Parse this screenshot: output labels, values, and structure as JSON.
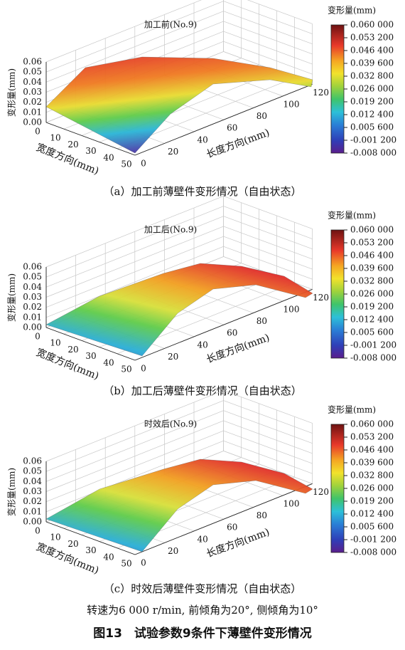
{
  "chart_data": [
    {
      "type": "surface",
      "title": "加工前(No.9)",
      "zlabel": "变形量(mm)",
      "xlabel": "宽度方向(mm)",
      "ylabel": "长度方向(mm)",
      "xlim": [
        0,
        50
      ],
      "xticks": [
        0,
        10,
        20,
        30,
        40,
        50
      ],
      "ylim": [
        0,
        120
      ],
      "yticks": [
        0,
        20,
        40,
        60,
        80,
        100,
        120
      ],
      "zlim": [
        0,
        0.06
      ],
      "zticks": [
        {
          "value": 0,
          "label": "0.00"
        },
        0.01,
        0.02,
        0.03,
        0.04,
        0.05,
        0.06
      ],
      "colorbar": {
        "title": "变形量(mm)",
        "lim": [
          -0.008,
          0.06
        ],
        "ticks": [
          {
            "value": 0.06,
            "label": "0.060 000"
          },
          {
            "value": 0.0532,
            "label": "0.053 200"
          },
          {
            "value": 0.0464,
            "label": "0.046 400"
          },
          {
            "value": 0.0396,
            "label": "0.039 600"
          },
          {
            "value": 0.0328,
            "label": "0.032 800"
          },
          {
            "value": 0.026,
            "label": "0.026 000"
          },
          {
            "value": 0.0192,
            "label": "0.019 200"
          },
          {
            "value": 0.0124,
            "label": "0.012 400"
          },
          {
            "value": 0.0056,
            "label": "0.005 600"
          },
          {
            "value": -0.0012,
            "label": "-0.001 200"
          },
          {
            "value": -0.008,
            "label": "-0.008 000"
          }
        ]
      },
      "caption": "（a）加工前薄壁件变形情况（自由状态）"
    },
    {
      "type": "surface",
      "title": "加工后(No.9)",
      "zlabel": "变形量(mm)",
      "xlabel": "宽度方向(mm)",
      "ylabel": "长度方向(mm)",
      "xlim": [
        0,
        50
      ],
      "xticks": [
        0,
        10,
        20,
        30,
        40,
        50
      ],
      "ylim": [
        0,
        120
      ],
      "yticks": [
        0,
        20,
        40,
        60,
        80,
        100,
        120
      ],
      "zlim": [
        0,
        0.06
      ],
      "zticks": [
        {
          "value": 0,
          "label": "0.00"
        },
        0.01,
        0.02,
        0.03,
        0.04,
        0.05,
        0.06
      ],
      "colorbar": {
        "title": "变形量(mm)",
        "lim": [
          -0.008,
          0.06
        ],
        "ticks": [
          {
            "value": 0.06,
            "label": "0.060 000"
          },
          {
            "value": 0.0532,
            "label": "0.053 200"
          },
          {
            "value": 0.0464,
            "label": "0.046 400"
          },
          {
            "value": 0.0396,
            "label": "0.039 600"
          },
          {
            "value": 0.0328,
            "label": "0.032 800"
          },
          {
            "value": 0.026,
            "label": "0.026 000"
          },
          {
            "value": 0.0192,
            "label": "0.019 200"
          },
          {
            "value": 0.0124,
            "label": "0.012 400"
          },
          {
            "value": 0.0056,
            "label": "0.005 600"
          },
          {
            "value": -0.0012,
            "label": "-0.001 200"
          },
          {
            "value": -0.008,
            "label": "-0.008 000"
          }
        ]
      },
      "caption": "（b）加工后薄壁件变形情况（自由状态）"
    },
    {
      "type": "surface",
      "title": "时效后(No.9)",
      "zlabel": "变形量(mm)",
      "xlabel": "宽度方向(mm)",
      "ylabel": "长度方向(mm)",
      "xlim": [
        0,
        50
      ],
      "xticks": [
        0,
        10,
        20,
        30,
        40,
        50
      ],
      "ylim": [
        0,
        120
      ],
      "yticks": [
        0,
        20,
        40,
        60,
        80,
        100,
        120
      ],
      "zlim": [
        0,
        0.06
      ],
      "zticks": [
        {
          "value": 0,
          "label": "0.00"
        },
        0.01,
        0.02,
        0.03,
        0.04,
        0.05,
        0.06
      ],
      "colorbar": {
        "title": "变形量(mm)",
        "lim": [
          -0.008,
          0.06
        ],
        "ticks": [
          {
            "value": 0.06,
            "label": "0.060 000"
          },
          {
            "value": 0.0532,
            "label": "0.053 200"
          },
          {
            "value": 0.0464,
            "label": "0.046 400"
          },
          {
            "value": 0.0396,
            "label": "0.039 600"
          },
          {
            "value": 0.0328,
            "label": "0.032 800"
          },
          {
            "value": 0.026,
            "label": "0.026 000"
          },
          {
            "value": 0.0192,
            "label": "0.019 200"
          },
          {
            "value": 0.0124,
            "label": "0.012 400"
          },
          {
            "value": 0.0056,
            "label": "0.005 600"
          },
          {
            "value": -0.0012,
            "label": "-0.001 200"
          },
          {
            "value": -0.008,
            "label": "-0.008 000"
          }
        ]
      },
      "caption": "（c）时效后薄壁件变形情况（自由状态）"
    }
  ],
  "note": "转速为6 000 r/min, 前倾角为20°, 侧倾角为10°",
  "figure_title": "图13　试验参数9条件下薄壁件变形情况"
}
